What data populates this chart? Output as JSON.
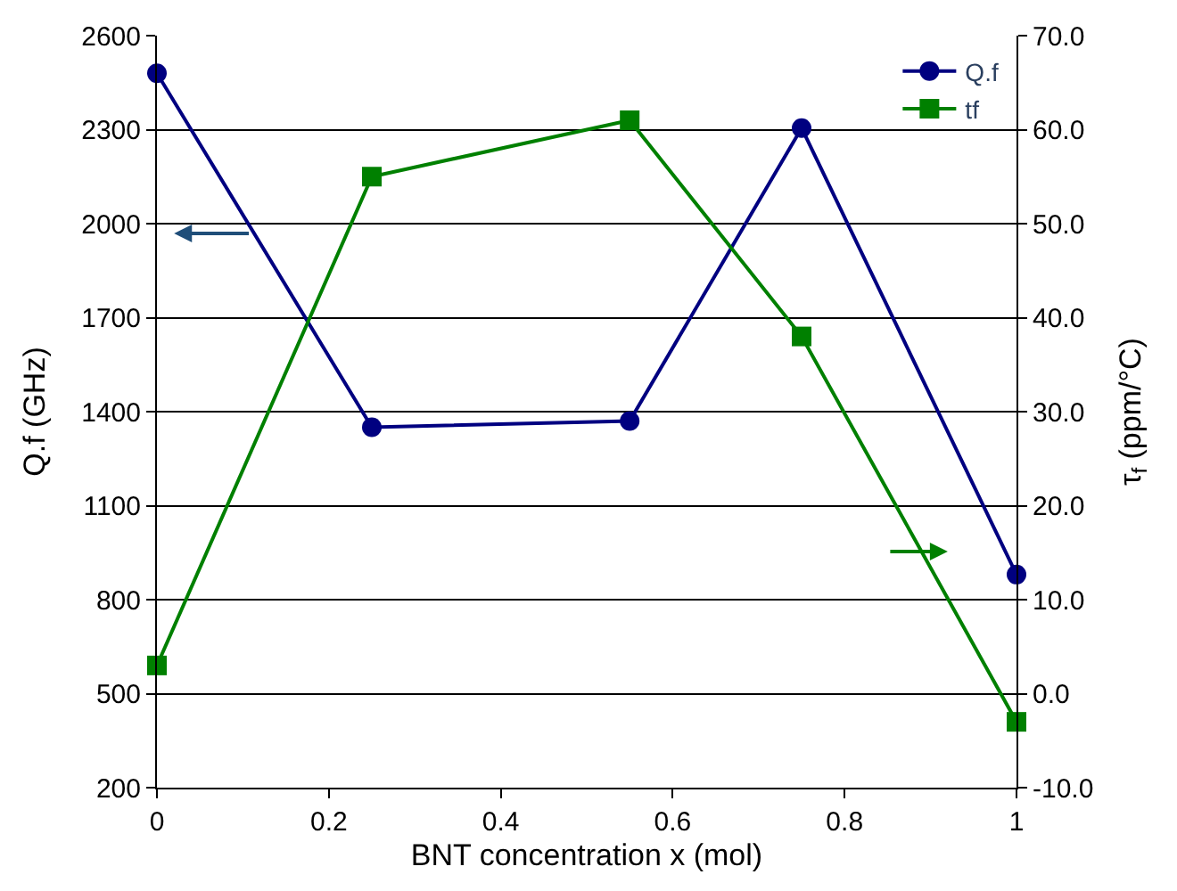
{
  "chart_data": {
    "type": "line",
    "xlabel": "BNT concentration x (mol)",
    "ylabel": "Q.f (GHz)",
    "y2label": "τ$_{f}$ (ppm/°C)",
    "x": [
      0,
      0.25,
      0.55,
      0.75,
      1
    ],
    "xlim": [
      0,
      1
    ],
    "xticks": [
      0,
      0.2,
      0.4,
      0.6,
      0.8,
      1
    ],
    "ylim": [
      200,
      2600
    ],
    "yticks": [
      200,
      500,
      800,
      1100,
      1400,
      1700,
      2000,
      2300,
      2600
    ],
    "y2lim": [
      -10,
      70
    ],
    "y2ticks": [
      {
        "value": -10,
        "label": "-10.0"
      },
      {
        "value": 0,
        "label": "0.0"
      },
      {
        "value": 10,
        "label": "10.0"
      },
      {
        "value": 20,
        "label": "20.0"
      },
      {
        "value": 30,
        "label": "30.0"
      },
      {
        "value": 40,
        "label": "40.0"
      },
      {
        "value": 50,
        "label": "50.0"
      },
      {
        "value": 60,
        "label": "60.0"
      },
      {
        "value": 70,
        "label": "70.0"
      }
    ],
    "series": [
      {
        "name": "Q.f",
        "color": "#000080",
        "marker": "circle",
        "values": [
          2480,
          1350,
          1370,
          2305,
          880
        ]
      },
      {
        "name": "tf",
        "color": "#008000",
        "marker": "square",
        "axis": "y2",
        "values": [
          3,
          55,
          61,
          38,
          -3
        ]
      }
    ],
    "grid": "y",
    "legend": "top right",
    "line_style": "solid"
  }
}
